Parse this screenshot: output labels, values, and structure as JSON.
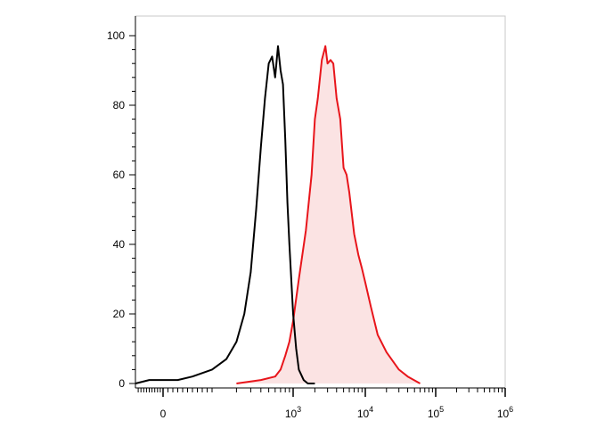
{
  "chart_data": {
    "type": "area",
    "title": "",
    "xlabel": "",
    "ylabel": "",
    "x_scale": "biexponential",
    "xlim": [
      -100,
      1000000
    ],
    "ylim": [
      0,
      100
    ],
    "y_ticks": [
      {
        "value": 0,
        "label": "0"
      },
      {
        "value": 20,
        "label": "20"
      },
      {
        "value": 40,
        "label": "40"
      },
      {
        "value": 60,
        "label": "60"
      },
      {
        "value": 80,
        "label": "80"
      },
      {
        "value": 100,
        "label": "100"
      }
    ],
    "x_ticks": [
      {
        "value": 0,
        "base": "0",
        "exp": ""
      },
      {
        "value": 1000,
        "base": "10",
        "exp": "3"
      },
      {
        "value": 10000,
        "base": "10",
        "exp": "4"
      },
      {
        "value": 100000,
        "base": "10",
        "exp": "5"
      },
      {
        "value": 1000000,
        "base": "10",
        "exp": "6"
      }
    ],
    "grid": false,
    "legend": "none",
    "series": [
      {
        "color": "#000000",
        "fill": "none",
        "x": [
          -100,
          -50,
          0,
          30,
          60,
          100,
          150,
          200,
          250,
          300,
          350,
          400,
          450,
          500,
          550,
          600,
          650,
          700,
          750,
          800,
          850,
          900,
          1000,
          1100,
          1200,
          1400,
          1600,
          2000
        ],
        "y": [
          0,
          1,
          1,
          1,
          2,
          4,
          7,
          12,
          20,
          32,
          50,
          68,
          82,
          92,
          94,
          88,
          97,
          90,
          86,
          70,
          52,
          40,
          20,
          10,
          4,
          1,
          0,
          0
        ]
      },
      {
        "color": "#e8151b",
        "fill": "#fbe3e3",
        "x": [
          200,
          400,
          600,
          700,
          800,
          900,
          1000,
          1200,
          1500,
          1800,
          2000,
          2200,
          2500,
          2800,
          3000,
          3300,
          3600,
          4000,
          4500,
          5000,
          5500,
          6000,
          7000,
          8000,
          9000,
          10000,
          12000,
          15000,
          20000,
          30000,
          40000,
          60000
        ],
        "y": [
          0,
          1,
          2,
          4,
          8,
          12,
          18,
          30,
          44,
          60,
          76,
          82,
          93,
          97,
          92,
          93,
          92,
          82,
          76,
          62,
          60,
          55,
          43,
          37,
          33,
          29,
          22,
          14,
          9,
          4,
          2,
          0
        ]
      }
    ]
  }
}
